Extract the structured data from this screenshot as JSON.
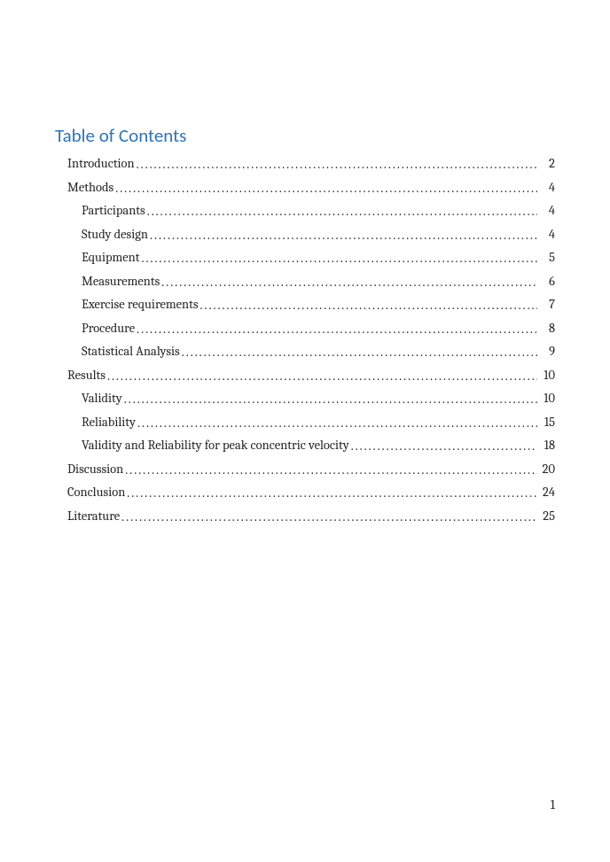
{
  "title": "Table of Contents",
  "title_color": "#2e74b5",
  "title_fontsize_pt": 16,
  "body_fontsize_pt": 11,
  "text_color": "#262626",
  "background_color": "#ffffff",
  "entries": [
    {
      "label": "Introduction",
      "page": "2",
      "level": 1
    },
    {
      "label": "Methods",
      "page": "4",
      "level": 1
    },
    {
      "label": "Participants",
      "page": "4",
      "level": 2
    },
    {
      "label": "Study design",
      "page": "4",
      "level": 2
    },
    {
      "label": "Equipment",
      "page": "5",
      "level": 2
    },
    {
      "label": "Measurements",
      "page": "6",
      "level": 2
    },
    {
      "label": "Exercise requirements",
      "page": "7",
      "level": 2
    },
    {
      "label": "Procedure",
      "page": "8",
      "level": 2
    },
    {
      "label": "Statistical Analysis",
      "page": "9",
      "level": 2
    },
    {
      "label": "Results",
      "page": "10",
      "level": 1
    },
    {
      "label": "Validity",
      "page": "10",
      "level": 2
    },
    {
      "label": "Reliability",
      "page": "15",
      "level": 2
    },
    {
      "label": "Validity and Reliability for peak concentric velocity",
      "page": "18",
      "level": 2
    },
    {
      "label": "Discussion",
      "page": "20",
      "level": 1
    },
    {
      "label": "Conclusion",
      "page": "24",
      "level": 1
    },
    {
      "label": "Literature",
      "page": "25",
      "level": 1
    }
  ],
  "page_number": "1"
}
